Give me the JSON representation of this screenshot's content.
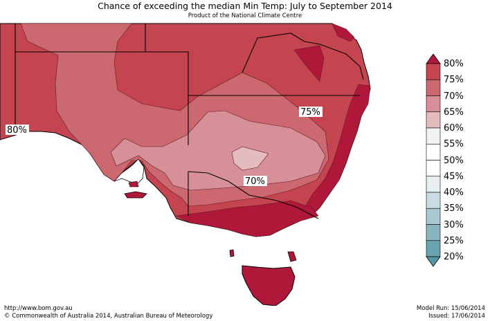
{
  "header": {
    "title": "Chance of exceeding the median Min Temp: July to September 2014",
    "subtitle": "Product of the National Climate Centre"
  },
  "map": {
    "region_labels": [
      "80%",
      "75%",
      "70%"
    ],
    "colors": {
      "c80": "#b0183a",
      "c75": "#c4454f",
      "c70": "#cc6870",
      "c65": "#d79097",
      "c60": "#e4bcc0",
      "c55": "#f2f2f2",
      "c50": "#ffffff",
      "c45": "#e6eef0",
      "c40": "#c7dde1",
      "c35": "#a8c8cf",
      "c30": "#88b5bf",
      "c25": "#6aa3b0",
      "c20": "#5597a6",
      "ocean": "#ffffff"
    }
  },
  "legend": {
    "labels": [
      "80%",
      "75%",
      "70%",
      "65%",
      "60%",
      "55%",
      "50%",
      "45%",
      "40%",
      "35%",
      "30%",
      "25%",
      "20%"
    ]
  },
  "footer": {
    "url": "http://www.bom.gov.au",
    "copyright": "©  Commonwealth of Australia 2014, Australian Bureau of Meteorology",
    "model_run": "Model Run: 15/06/2014",
    "issued": "Issued: 17/06/2014"
  }
}
